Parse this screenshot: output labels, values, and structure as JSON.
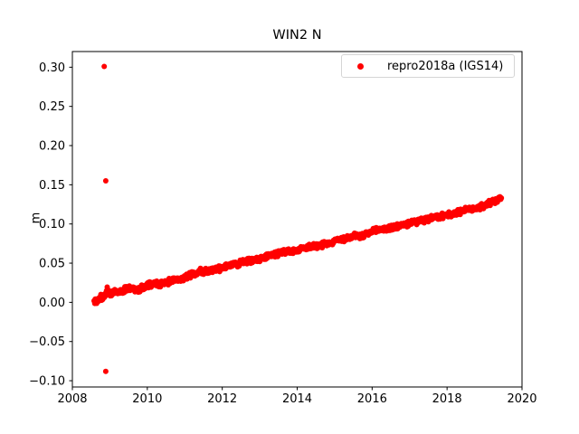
{
  "chart_data": {
    "type": "scatter",
    "title": "WIN2 N",
    "xlabel": "",
    "ylabel": "m",
    "xlim": [
      2008,
      2020
    ],
    "ylim": [
      -0.108,
      0.32
    ],
    "grid": false,
    "legend_position": "upper right",
    "x_ticks": [
      2008,
      2010,
      2012,
      2014,
      2016,
      2018,
      2020
    ],
    "x_tick_labels": [
      "2008",
      "2010",
      "2012",
      "2014",
      "2016",
      "2018",
      "2020"
    ],
    "y_ticks": [
      -0.1,
      -0.05,
      0.0,
      0.05,
      0.1,
      0.15,
      0.2,
      0.25,
      0.3
    ],
    "y_tick_labels": [
      "−0.10",
      "−0.05",
      "0.00",
      "0.05",
      "0.10",
      "0.15",
      "0.20",
      "0.25",
      "0.30"
    ],
    "axis_color": "#000000",
    "series": [
      {
        "name": "repro2018a (IGS14)",
        "color": "#ff0000",
        "marker": "dot",
        "marker_diameter_px": 6,
        "description": "dense near-daily time series rising linearly ~0.0123 m/yr",
        "trend_anchors": [
          [
            2008.58,
            0.0
          ],
          [
            2008.62,
            0.001
          ],
          [
            2008.7,
            0.004
          ],
          [
            2008.8,
            0.007
          ],
          [
            2008.88,
            0.009
          ],
          [
            2008.93,
            0.017
          ],
          [
            2008.98,
            0.011
          ],
          [
            2009.1,
            0.013
          ],
          [
            2009.3,
            0.014
          ],
          [
            2009.45,
            0.017
          ],
          [
            2009.6,
            0.018
          ],
          [
            2009.75,
            0.016
          ],
          [
            2009.9,
            0.019
          ],
          [
            2010.05,
            0.023
          ],
          [
            2010.2,
            0.024
          ],
          [
            2010.4,
            0.023
          ],
          [
            2010.6,
            0.027
          ],
          [
            2010.8,
            0.029
          ],
          [
            2011.0,
            0.032
          ],
          [
            2011.2,
            0.036
          ],
          [
            2011.4,
            0.039
          ],
          [
            2011.6,
            0.04
          ],
          [
            2011.8,
            0.042
          ],
          [
            2012.0,
            0.044
          ],
          [
            2012.2,
            0.047
          ],
          [
            2012.4,
            0.049
          ],
          [
            2012.6,
            0.052
          ],
          [
            2012.8,
            0.053
          ],
          [
            2013.0,
            0.056
          ],
          [
            2013.2,
            0.059
          ],
          [
            2013.4,
            0.061
          ],
          [
            2013.6,
            0.064
          ],
          [
            2013.8,
            0.065
          ],
          [
            2014.0,
            0.067
          ],
          [
            2014.2,
            0.069
          ],
          [
            2014.4,
            0.072
          ],
          [
            2014.6,
            0.073
          ],
          [
            2014.8,
            0.075
          ],
          [
            2015.0,
            0.078
          ],
          [
            2015.2,
            0.081
          ],
          [
            2015.4,
            0.083
          ],
          [
            2015.6,
            0.085
          ],
          [
            2015.75,
            0.084
          ],
          [
            2015.9,
            0.088
          ],
          [
            2016.1,
            0.092
          ],
          [
            2016.3,
            0.094
          ],
          [
            2016.5,
            0.095
          ],
          [
            2016.7,
            0.097
          ],
          [
            2016.9,
            0.1
          ],
          [
            2017.1,
            0.102
          ],
          [
            2017.3,
            0.104
          ],
          [
            2017.5,
            0.106
          ],
          [
            2017.7,
            0.108
          ],
          [
            2017.9,
            0.11
          ],
          [
            2018.1,
            0.113
          ],
          [
            2018.3,
            0.115
          ],
          [
            2018.5,
            0.118
          ],
          [
            2018.7,
            0.12
          ],
          [
            2018.9,
            0.122
          ],
          [
            2019.1,
            0.126
          ],
          [
            2019.25,
            0.129
          ],
          [
            2019.38,
            0.132
          ],
          [
            2019.45,
            0.133
          ]
        ],
        "sample_interval_years": 0.01,
        "jitter_m": 0.0022,
        "outliers": [
          [
            2008.85,
            0.301
          ],
          [
            2008.89,
            0.155
          ],
          [
            2008.89,
            -0.088
          ]
        ]
      }
    ],
    "legend": {
      "label": "repro2018a (IGS14)"
    }
  }
}
